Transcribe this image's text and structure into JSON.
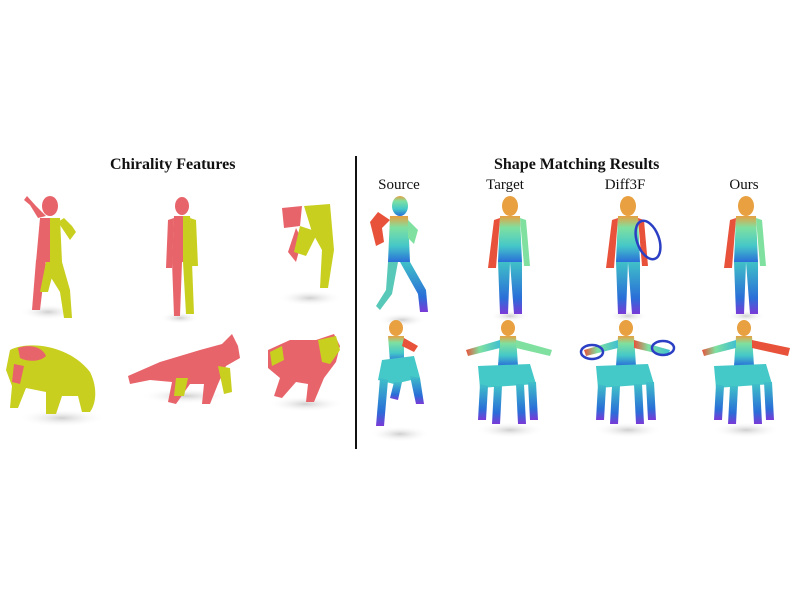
{
  "left_panel": {
    "title": "Chirality Features"
  },
  "right_panel": {
    "title": "Shape Matching Results",
    "columns": [
      "Source",
      "Target",
      "Diff3F",
      "Ours"
    ]
  },
  "colors": {
    "chirality_left": "#e8646b",
    "chirality_right": "#c9cf1f",
    "map_red": "#e8523a",
    "map_green": "#7fe0a0",
    "map_blue": "#2a6ed8",
    "map_purple": "#7a3ad8",
    "error_circle": "#2b3fc4",
    "shadow": "#d6d6d6"
  }
}
